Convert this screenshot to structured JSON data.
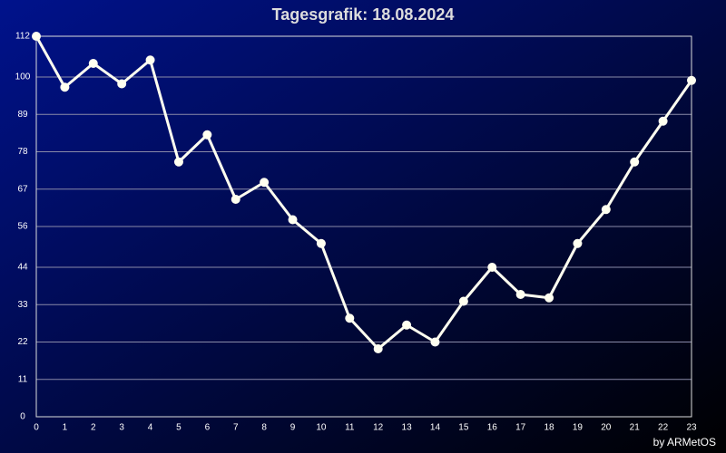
{
  "chart_data": {
    "type": "line",
    "title": "Tagesgrafik: 18.08.2024",
    "footer": "by ARMetOS",
    "x": [
      0,
      1,
      2,
      3,
      4,
      5,
      6,
      7,
      8,
      9,
      10,
      11,
      12,
      13,
      14,
      15,
      16,
      17,
      18,
      19,
      20,
      21,
      22,
      23
    ],
    "series": [
      {
        "color": "#fffff0",
        "values": [
          112,
          97,
          104,
          98,
          105,
          75,
          83,
          64,
          69,
          58,
          51,
          29,
          20,
          27,
          22,
          34,
          44,
          36,
          35,
          51,
          61,
          75,
          87,
          99
        ]
      }
    ],
    "xlim": [
      0,
      23
    ],
    "xticks": [
      0,
      1,
      2,
      3,
      4,
      5,
      6,
      7,
      8,
      9,
      10,
      11,
      12,
      13,
      14,
      15,
      16,
      17,
      18,
      19,
      20,
      21,
      22,
      23
    ],
    "ylim": [
      0,
      112
    ],
    "yticks": [
      0,
      11,
      22,
      33,
      44,
      56,
      67,
      78,
      89,
      100,
      112
    ],
    "grid": true
  }
}
